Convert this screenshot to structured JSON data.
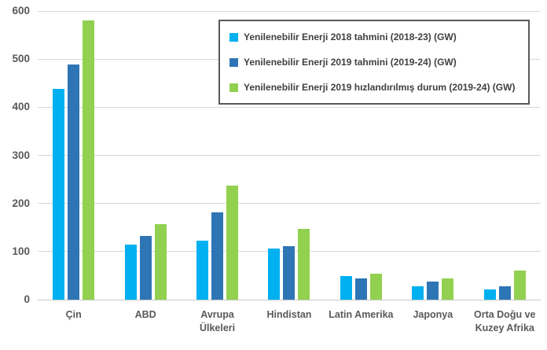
{
  "chart_data": {
    "type": "bar",
    "title": "",
    "xlabel": "",
    "ylabel": "",
    "categories": [
      "Çin",
      "ABD",
      "Avrupa Ülkeleri",
      "Hindistan",
      "Latin Amerika",
      "Japonya",
      "Orta Doğu ve Kuzey Afrika"
    ],
    "category_display": [
      "Çin",
      "ABD",
      "Avrupa\nÜlkeleri",
      "Hindistan",
      "Latin Amerika",
      "Japonya",
      "Orta Doğu ve\nKuzey Afrika"
    ],
    "series": [
      {
        "name": "Yenilenebilir Enerji 2018 tahmini (2018-23) (GW)",
        "color": "#00B0F0",
        "values": [
          438,
          115,
          123,
          106,
          49,
          28,
          22
        ]
      },
      {
        "name": "Yenilenebilir Enerji 2019 tahmini (2019-24) (GW)",
        "color": "#2E75B6",
        "values": [
          489,
          132,
          182,
          111,
          44,
          37,
          28
        ]
      },
      {
        "name": "Yenilenebilir Enerji 2019 hızlandırılmış durum (2019-24) (GW)",
        "color": "#92D050",
        "values": [
          580,
          157,
          237,
          148,
          54,
          45,
          61
        ]
      }
    ],
    "ylim": [
      0,
      600
    ],
    "yticks": [
      0,
      100,
      200,
      300,
      400,
      500,
      600
    ],
    "grid": true,
    "legend_position": "top-right"
  },
  "style": {
    "background": "#FFFFFF",
    "gridline_color": "#D9D9D9",
    "axis_line_color": "#C9C9C9",
    "tick_text_color": "#595959",
    "legend_text_color": "#404040",
    "legend_border_color": "#595959"
  }
}
